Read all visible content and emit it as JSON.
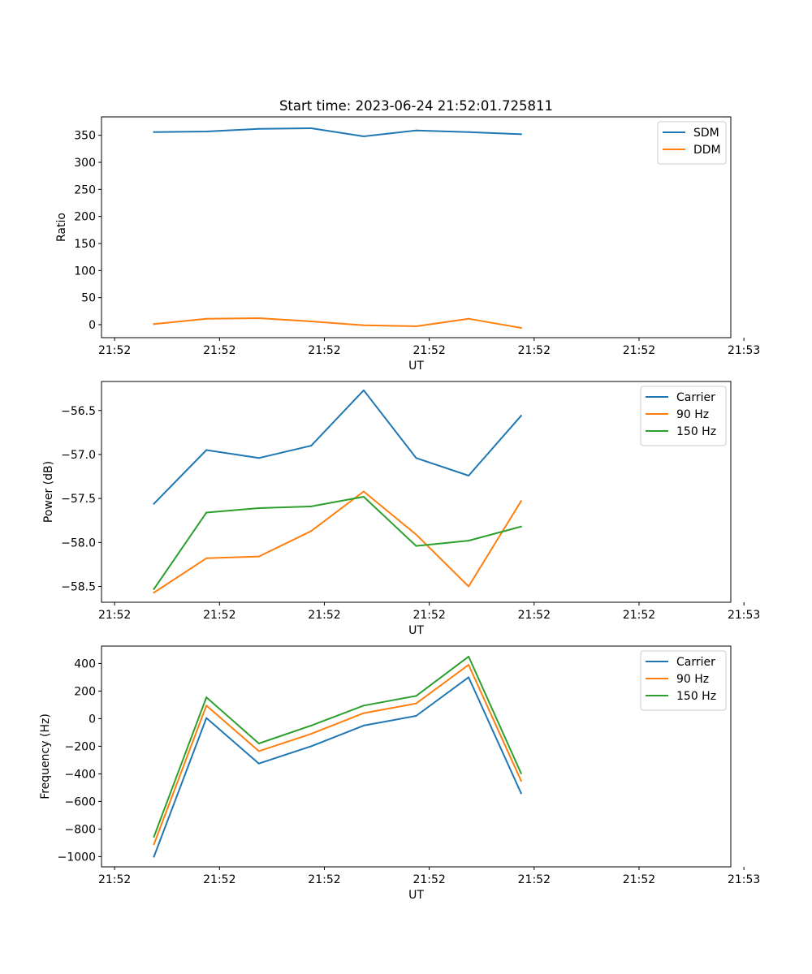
{
  "title": "Start time: 2023-06-24 21:52:01.725811",
  "x_tick_labels": [
    "21:52",
    "21:52",
    "21:52",
    "21:52",
    "21:52",
    "21:52",
    "21:53"
  ],
  "colors": {
    "blue": "#1f77b4",
    "orange": "#ff7f0e",
    "green": "#2ca02c"
  },
  "chart_data": [
    {
      "type": "line",
      "title": "Start time: 2023-06-24 21:52:01.725811",
      "xlabel": "UT",
      "ylabel": "Ratio",
      "x": [
        0.5,
        1.0,
        1.5,
        2.0,
        2.5,
        3.0,
        3.5,
        4.0
      ],
      "xlim": [
        0,
        6
      ],
      "ylim": [
        -24,
        384
      ],
      "yticks": [
        0,
        50,
        100,
        150,
        200,
        250,
        300,
        350
      ],
      "series": [
        {
          "name": "SDM",
          "color": "#1f77b4",
          "values": [
            356,
            357,
            362,
            363,
            348,
            359,
            356,
            352
          ]
        },
        {
          "name": "DDM",
          "color": "#ff7f0e",
          "values": [
            1,
            11,
            12,
            6,
            -1,
            -3,
            11,
            -6
          ]
        }
      ],
      "legend": "top-right"
    },
    {
      "type": "line",
      "xlabel": "UT",
      "ylabel": "Power (dB)",
      "x": [
        0.5,
        1.0,
        1.5,
        2.0,
        2.5,
        3.0,
        3.5,
        4.0
      ],
      "xlim": [
        0,
        6
      ],
      "ylim": [
        -58.68,
        -56.17
      ],
      "yticks": [
        -58.5,
        -58.0,
        -57.5,
        -57.0,
        -56.5
      ],
      "ytick_labels": [
        "−58.5",
        "−58.0",
        "−57.5",
        "−57.0",
        "−56.5"
      ],
      "series": [
        {
          "name": "Carrier",
          "color": "#1f77b4",
          "values": [
            -57.56,
            -56.95,
            -57.04,
            -56.9,
            -56.27,
            -57.04,
            -57.24,
            -56.56
          ]
        },
        {
          "name": "90 Hz",
          "color": "#ff7f0e",
          "values": [
            -58.57,
            -58.18,
            -58.16,
            -57.87,
            -57.42,
            -57.91,
            -58.5,
            -57.53
          ]
        },
        {
          "name": "150 Hz",
          "color": "#2ca02c",
          "values": [
            -58.53,
            -57.66,
            -57.61,
            -57.59,
            -57.48,
            -58.04,
            -57.98,
            -57.82
          ]
        }
      ],
      "legend": "top-right"
    },
    {
      "type": "line",
      "xlabel": "UT",
      "ylabel": "Frequency (Hz)",
      "x": [
        0.5,
        1.0,
        1.5,
        2.0,
        2.5,
        3.0,
        3.5,
        4.0
      ],
      "xlim": [
        0,
        6
      ],
      "ylim": [
        -1074,
        526
      ],
      "yticks": [
        -1000,
        -800,
        -600,
        -400,
        -200,
        0,
        200,
        400
      ],
      "ytick_labels": [
        "−1000",
        "−800",
        "−600",
        "−400",
        "−200",
        "0",
        "200",
        "400"
      ],
      "series": [
        {
          "name": "Carrier",
          "color": "#1f77b4",
          "values": [
            -1000,
            5,
            -325,
            -200,
            -50,
            20,
            300,
            -540
          ]
        },
        {
          "name": "90 Hz",
          "color": "#ff7f0e",
          "values": [
            -910,
            95,
            -235,
            -110,
            40,
            110,
            390,
            -450
          ]
        },
        {
          "name": "150 Hz",
          "color": "#2ca02c",
          "values": [
            -855,
            155,
            -180,
            -50,
            95,
            165,
            450,
            -395
          ]
        }
      ],
      "legend": "top-right"
    }
  ]
}
